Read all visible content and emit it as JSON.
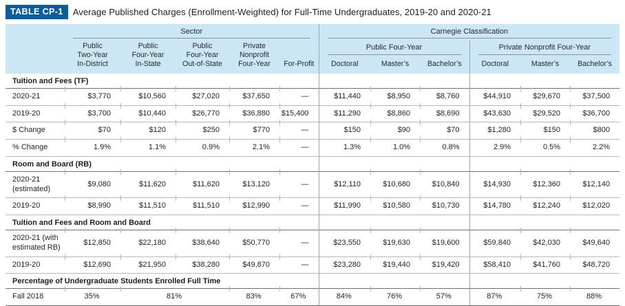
{
  "header": {
    "badge": "TABLE CP-1",
    "title": "Average Published Charges (Enrollment-Weighted) for Full-Time Undergraduates, 2019-20 and 2020-21"
  },
  "colors": {
    "badge_blue": "#0e5c99",
    "header_light_blue": "#cbe6f5",
    "text_dark": "#231f20",
    "rule_gray": "#b5b7ba",
    "divider_gray": "#a0a2a5"
  },
  "table": {
    "columns": {
      "sector_group": "Sector",
      "carnegie_group": "Carnegie Classification",
      "carnegie_subgroups": [
        "Public Four-Year",
        "Private Nonprofit Four-Year"
      ],
      "sector_cols": [
        "Public\nTwo-Year\nIn-District",
        "Public\nFour-Year\nIn-State",
        "Public\nFour-Year\nOut-of-State",
        "Private\nNonprofit\nFour-Year",
        "For-Profit"
      ],
      "carnegie_cols": [
        "Doctoral",
        "Master’s",
        "Bachelor’s",
        "Doctoral",
        "Master’s",
        "Bachelor’s"
      ]
    },
    "sections": [
      {
        "title": "Tuition and Fees (TF)",
        "rows": [
          {
            "label": "2020-21",
            "values": [
              "$3,770",
              "$10,560",
              "$27,020",
              "$37,650",
              "—",
              "$11,440",
              "$8,950",
              "$8,760",
              "$44,910",
              "$29,670",
              "$37,500"
            ]
          },
          {
            "label": "2019-20",
            "values": [
              "$3,700",
              "$10,440",
              "$26,770",
              "$36,880",
              "$15,400",
              "$11,290",
              "$8,860",
              "$8,690",
              "$43,630",
              "$29,520",
              "$36,700"
            ]
          },
          {
            "label": "$ Change",
            "values": [
              "$70",
              "$120",
              "$250",
              "$770",
              "—",
              "$150",
              "$90",
              "$70",
              "$1,280",
              "$150",
              "$800"
            ]
          },
          {
            "label": "% Change",
            "values": [
              "1.9%",
              "1.1%",
              "0.9%",
              "2.1%",
              "—",
              "1.3%",
              "1.0%",
              "0.8%",
              "2.9%",
              "0.5%",
              "2.2%"
            ]
          }
        ]
      },
      {
        "title": "Room and Board (RB)",
        "rows": [
          {
            "label": "2020-21 (estimated)",
            "values": [
              "$9,080",
              "$11,620",
              "$11,620",
              "$13,120",
              "—",
              "$12,110",
              "$10,680",
              "$10,840",
              "$14,930",
              "$12,360",
              "$12,140"
            ]
          },
          {
            "label": "2019-20",
            "values": [
              "$8,990",
              "$11,510",
              "$11,510",
              "$12,990",
              "—",
              "$11,990",
              "$10,580",
              "$10,730",
              "$14,780",
              "$12,240",
              "$12,020"
            ]
          }
        ]
      },
      {
        "title": "Tuition and Fees and Room and Board",
        "rows": [
          {
            "label": "2020-21 (with estimated RB)",
            "values": [
              "$12,850",
              "$22,180",
              "$38,640",
              "$50,770",
              "—",
              "$23,550",
              "$19,630",
              "$19,600",
              "$59,840",
              "$42,030",
              "$49,640"
            ]
          },
          {
            "label": "2019-20",
            "values": [
              "$12,690",
              "$21,950",
              "$38,280",
              "$49,870",
              "—",
              "$23,280",
              "$19,440",
              "$19,420",
              "$58,410",
              "$41,760",
              "$48,720"
            ]
          }
        ]
      },
      {
        "title": "Percentage of Undergraduate Students Enrolled Full Time",
        "rows": [
          {
            "label": "Fall 2018",
            "merge23": true,
            "values": [
              "35%",
              "81%",
              "83%",
              "67%",
              "84%",
              "76%",
              "57%",
              "87%",
              "75%",
              "88%"
            ]
          }
        ]
      }
    ]
  }
}
